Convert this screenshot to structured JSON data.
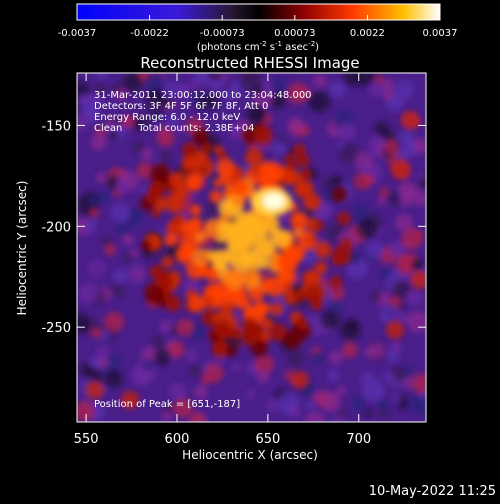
{
  "colorbar": {
    "ticks": [
      "-0.0037",
      "-0.0022",
      "-0.00073",
      "0.00073",
      "0.0022",
      "0.0037"
    ],
    "units_main": "(photons cm",
    "units_exp1": "-2",
    "units_mid": " s",
    "units_exp2": "-1",
    "units_tail": " asec",
    "units_exp3": "-2",
    "units_close": ")"
  },
  "image": {
    "title": "Reconstructed RHESSI Image",
    "info": [
      "31-Mar-2011 23:00:12.000 to 23:04:48.000",
      "Detectors: 3F 4F 5F 6F 7F 8F, Att 0",
      "Energy Range: 6.0 - 12.0 keV",
      "Clean     Total counts: 2.38E+04"
    ],
    "peak_label": "Position of Peak = [651,-187]",
    "peak": [
      651,
      -187
    ]
  },
  "axes": {
    "xlabel": "Heliocentric X (arcsec)",
    "ylabel": "Heliocentric Y (arcsec)",
    "xticks": [
      "550",
      "600",
      "650",
      "700"
    ],
    "yticks": [
      "-150",
      "-200",
      "-250"
    ],
    "xlim": [
      545,
      737
    ],
    "ylim": [
      -297,
      -124
    ]
  },
  "footer": {
    "timestamp": "10-May-2022 11:25"
  }
}
